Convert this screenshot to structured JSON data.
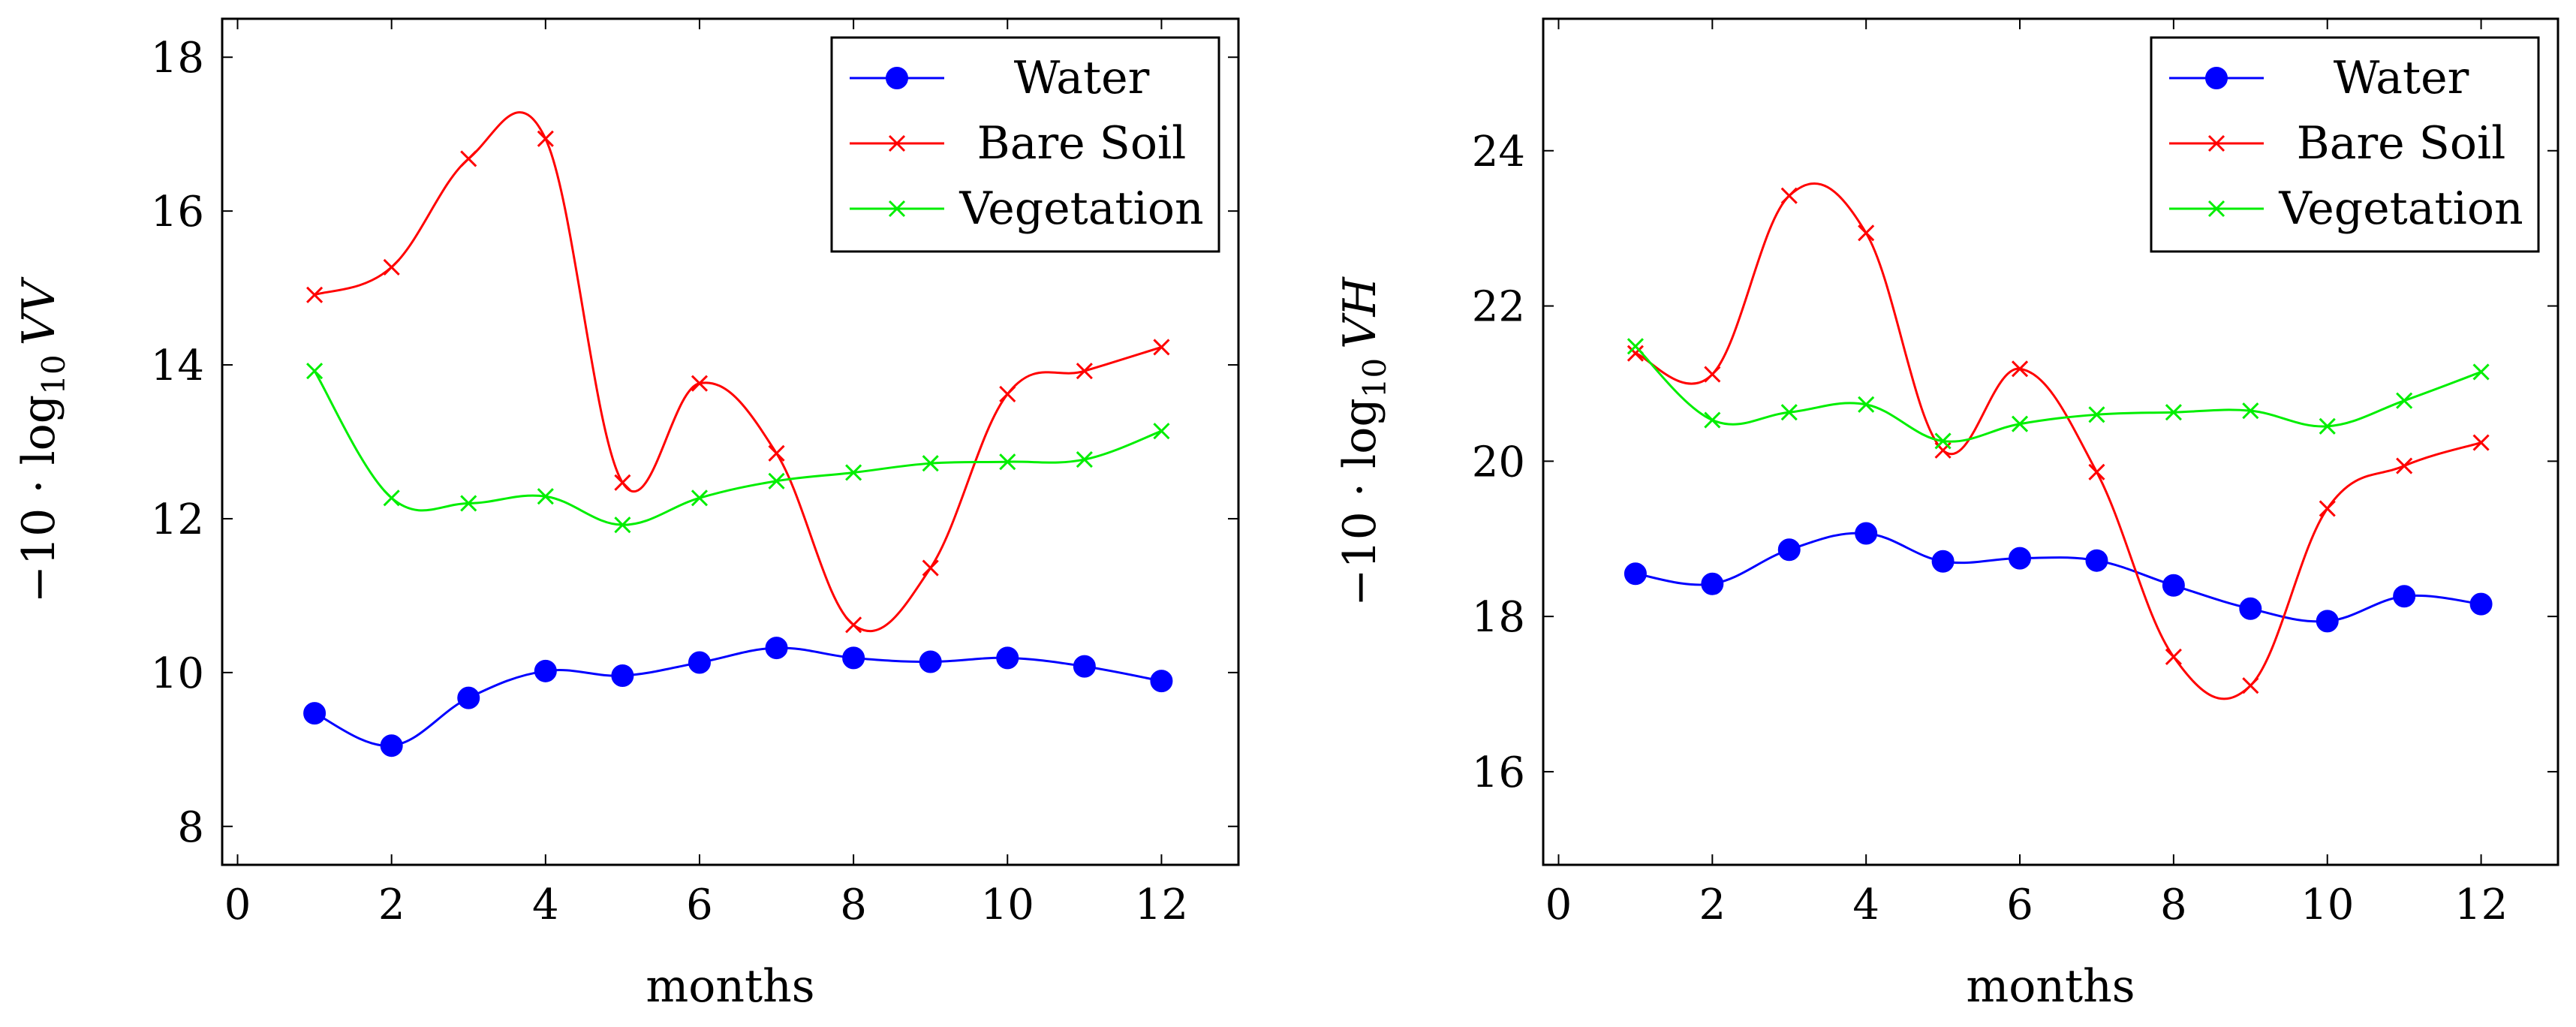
{
  "chart_data": [
    {
      "type": "line",
      "title": "",
      "xlabel": "months",
      "ylabel": "−10 · log₁₀ VV",
      "ylabel_parts": {
        "prefix": "−10 · log",
        "subscript": "10",
        "variable": "VV"
      },
      "xlim": [
        -0.2,
        13
      ],
      "ylim": [
        7.5,
        18.5
      ],
      "xticks": [
        0,
        2,
        4,
        6,
        8,
        10,
        12
      ],
      "yticks": [
        8,
        10,
        12,
        14,
        16,
        18
      ],
      "legend_position": "top-right",
      "x": [
        1,
        2,
        3,
        4,
        5,
        6,
        7,
        8,
        9,
        10,
        11,
        12
      ],
      "series": [
        {
          "name": "Water",
          "color": "#0000ff",
          "marker": "circle",
          "values": [
            9.47,
            9.05,
            9.67,
            10.02,
            9.96,
            10.13,
            10.32,
            10.19,
            10.14,
            10.19,
            10.08,
            9.89
          ]
        },
        {
          "name": "Bare Soil",
          "color": "#ff0000",
          "marker": "x",
          "values": [
            14.91,
            15.27,
            16.68,
            16.94,
            12.47,
            13.76,
            12.85,
            10.62,
            11.36,
            13.62,
            13.92,
            14.23
          ]
        },
        {
          "name": "Vegetation",
          "color": "#00ee00",
          "marker": "x",
          "values": [
            13.92,
            12.27,
            12.2,
            12.29,
            11.92,
            12.27,
            12.49,
            12.6,
            12.72,
            12.74,
            12.77,
            13.14
          ]
        }
      ]
    },
    {
      "type": "line",
      "title": "",
      "xlabel": "months",
      "ylabel": "−10 · log₁₀ VH",
      "ylabel_parts": {
        "prefix": "−10 · log",
        "subscript": "10",
        "variable": "VH"
      },
      "xlim": [
        -0.2,
        13
      ],
      "ylim": [
        14.8,
        25.7
      ],
      "xticks": [
        0,
        2,
        4,
        6,
        8,
        10,
        12
      ],
      "yticks": [
        16,
        18,
        20,
        22,
        24
      ],
      "legend_position": "top-right",
      "x": [
        1,
        2,
        3,
        4,
        5,
        6,
        7,
        8,
        9,
        10,
        11,
        12
      ],
      "series": [
        {
          "name": "Water",
          "color": "#0000ff",
          "marker": "circle",
          "values": [
            18.55,
            18.42,
            18.86,
            19.07,
            18.71,
            18.75,
            18.72,
            18.4,
            18.1,
            17.94,
            18.26,
            18.16
          ]
        },
        {
          "name": "Bare Soil",
          "color": "#ff0000",
          "marker": "x",
          "values": [
            21.39,
            21.12,
            23.42,
            22.94,
            20.14,
            21.19,
            19.86,
            17.48,
            17.11,
            19.39,
            19.94,
            20.24
          ]
        },
        {
          "name": "Vegetation",
          "color": "#00ee00",
          "marker": "x",
          "values": [
            21.48,
            20.53,
            20.63,
            20.73,
            20.26,
            20.48,
            20.6,
            20.63,
            20.65,
            20.45,
            20.78,
            21.15
          ]
        }
      ]
    }
  ]
}
